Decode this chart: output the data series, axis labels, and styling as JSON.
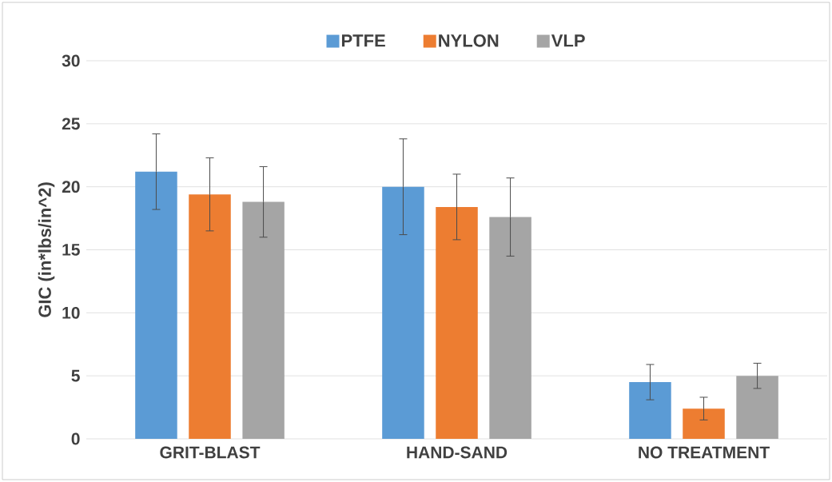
{
  "chart_data": {
    "type": "bar",
    "ylabel": "GIC (in*lbs/in^2)",
    "categories": [
      "GRIT-BLAST",
      "HAND-SAND",
      "NO TREATMENT"
    ],
    "series": [
      {
        "name": "PTFE",
        "color": "#5b9bd5",
        "values": [
          21.2,
          20.0,
          4.5
        ],
        "errors": [
          3.0,
          3.8,
          1.4
        ]
      },
      {
        "name": "NYLON",
        "color": "#ed7d31",
        "values": [
          19.4,
          18.4,
          2.4
        ],
        "errors": [
          2.9,
          2.6,
          0.9
        ]
      },
      {
        "name": "VLP",
        "color": "#a5a5a5",
        "values": [
          18.8,
          17.6,
          5.0
        ],
        "errors": [
          2.8,
          3.1,
          1.0
        ]
      }
    ],
    "ylim": [
      0,
      30
    ],
    "yticks": [
      0,
      5,
      10,
      15,
      20,
      25,
      30
    ],
    "grid": "y",
    "legend": "top"
  }
}
